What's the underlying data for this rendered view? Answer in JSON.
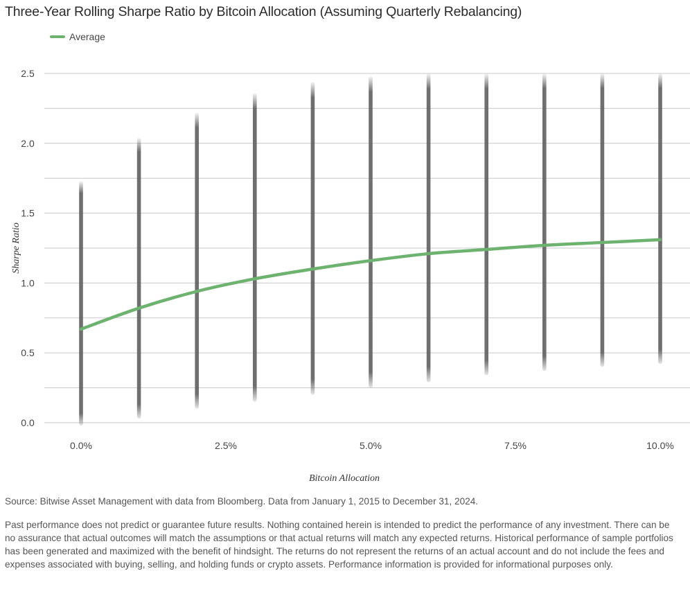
{
  "title": "Three-Year Rolling Sharpe Ratio by Bitcoin Allocation (Assuming Quarterly Rebalancing)",
  "source": "Source: Bitwise Asset Management with data from Bloomberg. Data from January 1, 2015 to December 31, 2024.",
  "disclaimer": "Past performance does not predict or guarantee future results. Nothing contained herein is intended to predict the performance of any investment. There can be no assurance that actual outcomes will match the assumptions or that actual returns will match any expected returns. Historical performance of sample portfolios has been generated and maximized with the benefit of hindsight. The returns do not represent the returns of an actual account and do not include the fees and expenses associated with buying, selling, and holding funds or crypto assets. Performance information is provided for informational purposes only.",
  "chart_data": {
    "type": "scatter",
    "xlabel": "Bitcoin Allocation",
    "ylabel": "Sharpe Ratio",
    "xlim": [
      0,
      10
    ],
    "ylim": [
      0,
      2.5
    ],
    "grid": true,
    "legend_placement": "top-left",
    "x_ticks": [
      "0.0%",
      "2.5%",
      "5.0%",
      "7.5%",
      "10.0%"
    ],
    "x_tick_values": [
      0,
      2.5,
      5,
      7.5,
      10
    ],
    "y_ticks": [
      "0.0",
      "0.5",
      "1.0",
      "1.5",
      "2.0",
      "2.5"
    ],
    "y_tick_values": [
      0,
      0.5,
      1,
      1.5,
      2,
      2.5
    ],
    "distribution": {
      "allocations": [
        0,
        1,
        2,
        3,
        4,
        5,
        6,
        7,
        8,
        9,
        10
      ],
      "min": [
        -0.02,
        0.03,
        0.1,
        0.15,
        0.2,
        0.25,
        0.29,
        0.34,
        0.37,
        0.4,
        0.42
      ],
      "max": [
        1.73,
        2.04,
        2.22,
        2.36,
        2.44,
        2.48,
        2.5,
        2.5,
        2.5,
        2.5,
        2.5
      ],
      "color": "#5f5f5f"
    },
    "series": [
      {
        "name": "Average",
        "color": "#6db36f",
        "x": [
          0,
          1,
          2,
          3,
          4,
          5,
          6,
          7,
          8,
          9,
          10
        ],
        "values": [
          0.67,
          0.82,
          0.94,
          1.03,
          1.1,
          1.16,
          1.21,
          1.24,
          1.27,
          1.29,
          1.31
        ]
      }
    ]
  }
}
